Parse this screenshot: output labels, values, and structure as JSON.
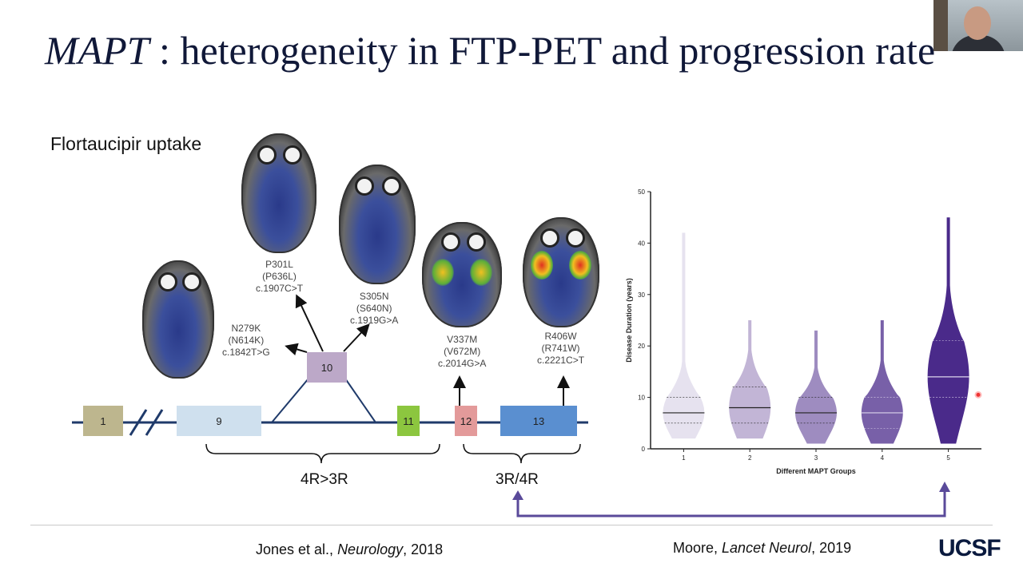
{
  "slide": {
    "title_gene": "MAPT",
    "title_rest": " : heterogeneity in FTP-PET and progression rate",
    "subtitle": "Flortaucipir uptake",
    "ref_left_authors": "Jones et al., ",
    "ref_left_journal": "Neurology",
    "ref_left_year": ", 2018",
    "ref_right_authors": "Moore, ",
    "ref_right_journal": "Lancet Neurol",
    "ref_right_year": ", 2019",
    "logo": "UCSF"
  },
  "diagram": {
    "mutations": [
      {
        "line1": "N279K",
        "line2": "(N614K)",
        "line3": "c.1842T>G"
      },
      {
        "line1": "P301L",
        "line2": "(P636L)",
        "line3": "c.1907C>T"
      },
      {
        "line1": "S305N",
        "line2": "(S640N)",
        "line3": "c.1919G>A"
      },
      {
        "line1": "V337M",
        "line2": "(V672M)",
        "line3": "c.2014G>A"
      },
      {
        "line1": "R406W",
        "line2": "(R741W)",
        "line3": "c.2221C>T"
      }
    ],
    "exons": [
      "1",
      "9",
      "10",
      "11",
      "12",
      "13"
    ],
    "exon_colors": [
      "#bdb68e",
      "#cfe0ee",
      "#bca8c8",
      "#8cc63f",
      "#e39a9a",
      "#5a8fd0"
    ],
    "groups": [
      "4R>3R",
      "3R/4R"
    ]
  },
  "chart_data": {
    "type": "violin",
    "title": "",
    "xlabel": "Different MAPT Groups",
    "ylabel": "Disease Duration (years)",
    "ylim": [
      0,
      50
    ],
    "yticks": [
      0,
      10,
      20,
      30,
      40,
      50
    ],
    "categories": [
      "1",
      "2",
      "3",
      "4",
      "5"
    ],
    "series": [
      {
        "name": "1",
        "min": 2,
        "max": 42,
        "median": 7,
        "q1": 5,
        "q3": 10,
        "color": "#e6e2ef"
      },
      {
        "name": "2",
        "min": 2,
        "max": 25,
        "median": 8,
        "q1": 5,
        "q3": 12,
        "color": "#c2b5d6"
      },
      {
        "name": "3",
        "min": 1,
        "max": 23,
        "median": 7,
        "q1": 5,
        "q3": 10,
        "color": "#9e8cc0"
      },
      {
        "name": "4",
        "min": 1,
        "max": 25,
        "median": 7,
        "q1": 4,
        "q3": 10,
        "color": "#7860a8"
      },
      {
        "name": "5",
        "min": 1,
        "max": 45,
        "median": 14,
        "q1": 10,
        "q3": 21,
        "color": "#4a2a8a"
      }
    ]
  }
}
